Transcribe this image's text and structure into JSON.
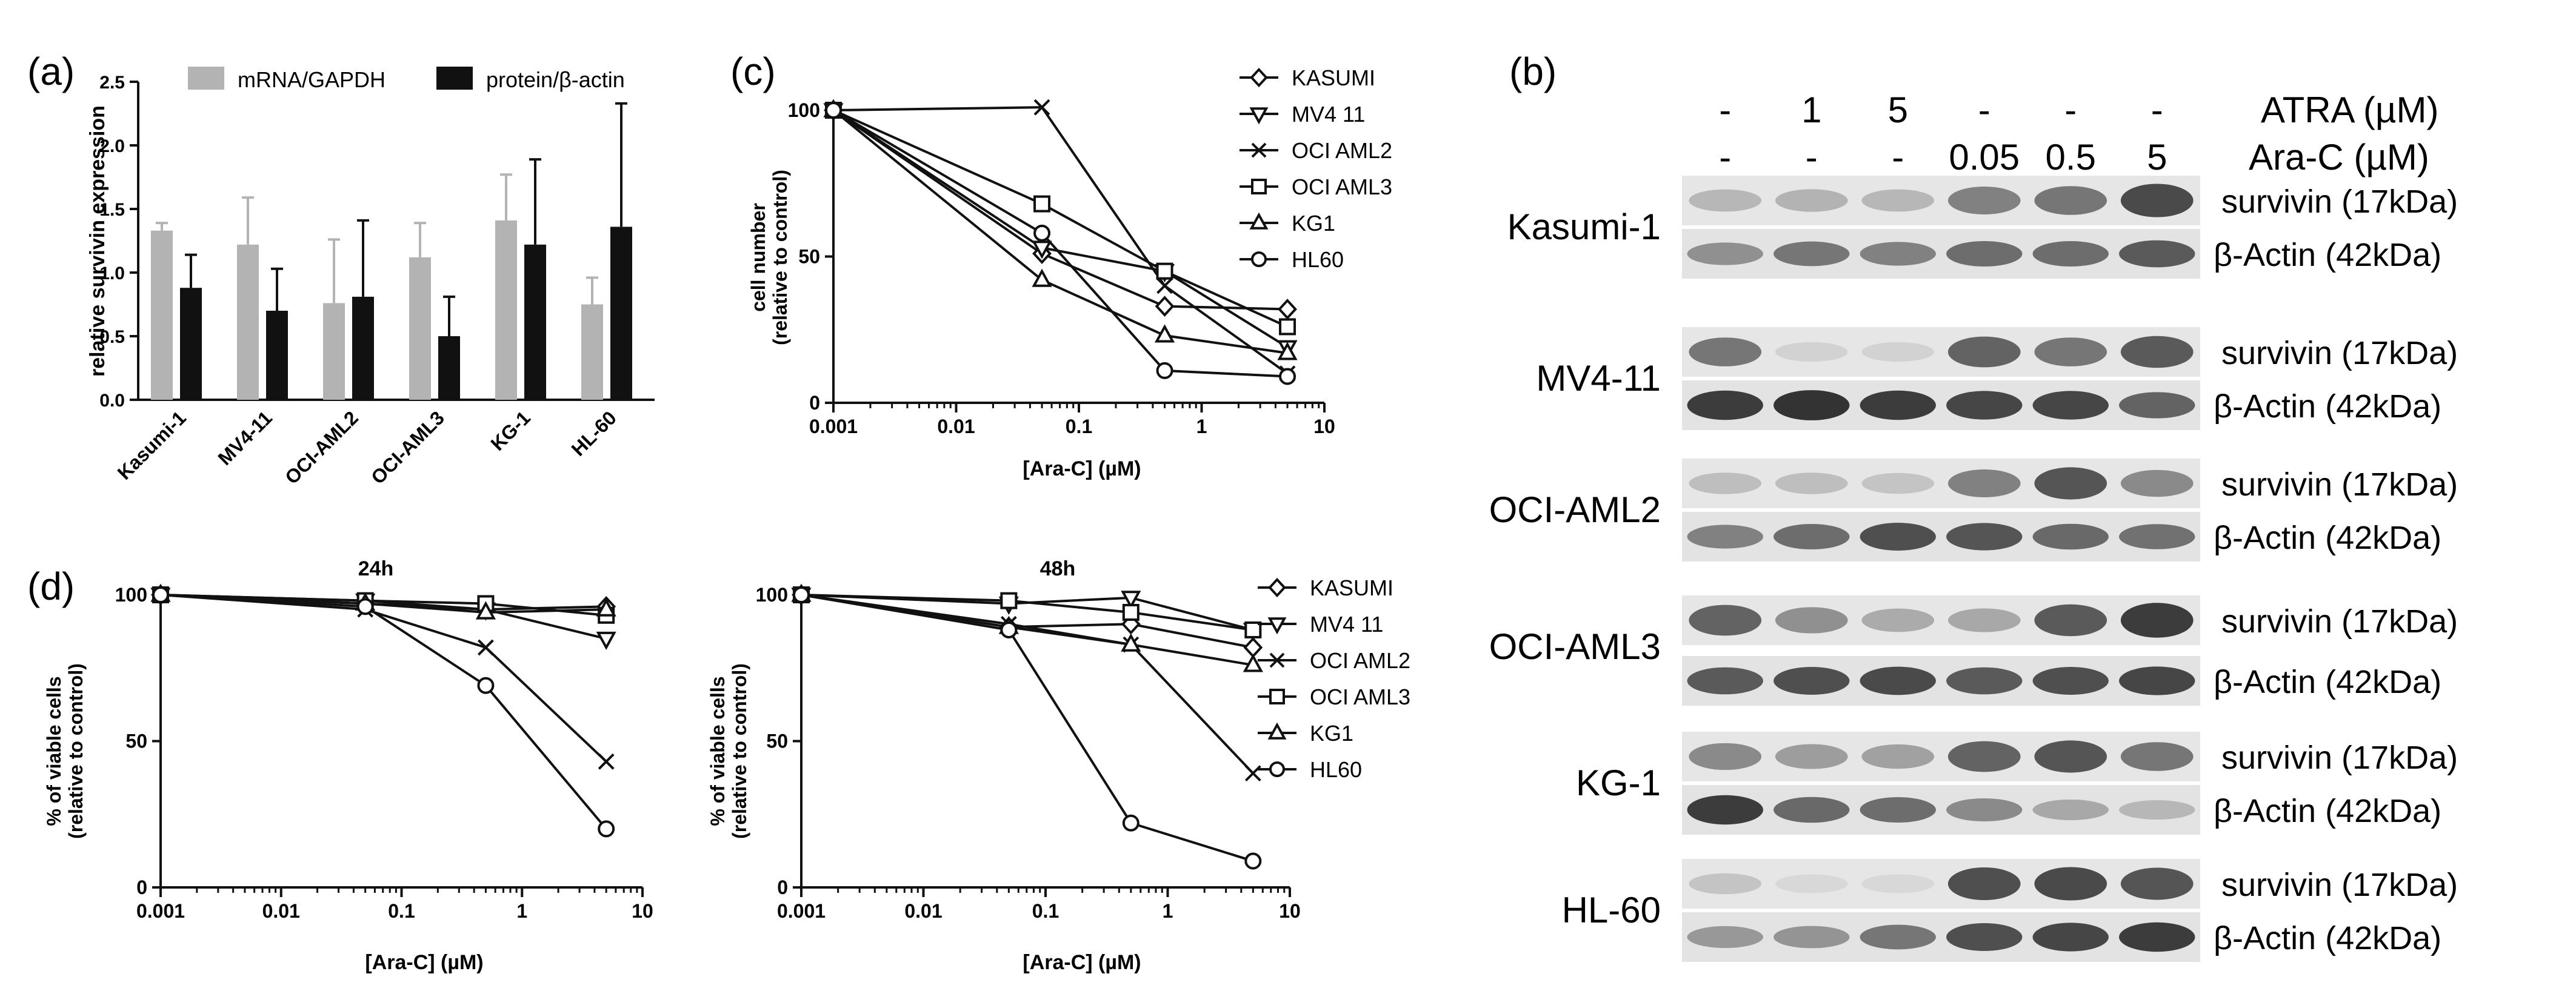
{
  "panel_a": {
    "label": "(a)",
    "ylabel": "relative survivin expression",
    "chart_data": {
      "type": "bar",
      "categories": [
        "Kasumi-1",
        "MV4-11",
        "OCI-AML2",
        "OCI-AML3",
        "KG-1",
        "HL-60"
      ],
      "ylim": [
        0,
        2.5
      ],
      "yticks": [
        "0.0",
        "0.5",
        "1.0",
        "1.5",
        "2.0",
        "2.5"
      ],
      "series": [
        {
          "name": "mRNA/GAPDH",
          "color": "#b3b3b3",
          "values": [
            1.33,
            1.22,
            0.76,
            1.12,
            1.41,
            0.75
          ],
          "err": [
            0.06,
            0.37,
            0.5,
            0.27,
            0.36,
            0.21
          ]
        },
        {
          "name": "protein/β-actin",
          "color": "#111111",
          "values": [
            0.88,
            0.7,
            0.81,
            0.5,
            1.22,
            1.36
          ],
          "err": [
            0.26,
            0.33,
            0.6,
            0.31,
            0.67,
            0.97
          ]
        }
      ]
    }
  },
  "panel_b": {
    "label": "(b)",
    "treatments": {
      "atra_label": "ATRA (µM)",
      "arac_label": "Ara-C (µM)",
      "atra": [
        "-",
        "1",
        "5",
        "-",
        "-",
        "-"
      ],
      "arac": [
        "-",
        "-",
        "-",
        "0.05",
        "0.5",
        "5"
      ]
    },
    "rows": [
      {
        "cell": "Kasumi-1",
        "survivin_label": "survivin (17kDa)",
        "actin_label": "β-Actin (42kDa)",
        "survivin": [
          0.22,
          0.24,
          0.22,
          0.5,
          0.55,
          0.78
        ],
        "actin": [
          0.42,
          0.55,
          0.5,
          0.6,
          0.6,
          0.7
        ]
      },
      {
        "cell": "MV4-11",
        "survivin_label": "survivin (17kDa)",
        "actin_label": "β-Actin (42kDa)",
        "survivin": [
          0.55,
          0.08,
          0.08,
          0.65,
          0.55,
          0.7
        ],
        "actin": [
          0.85,
          0.9,
          0.85,
          0.8,
          0.8,
          0.65
        ]
      },
      {
        "cell": "OCI-AML2",
        "survivin_label": "survivin (17kDa)",
        "actin_label": "β-Actin (42kDa)",
        "survivin": [
          0.18,
          0.18,
          0.15,
          0.5,
          0.72,
          0.45
        ],
        "actin": [
          0.5,
          0.6,
          0.75,
          0.72,
          0.62,
          0.58
        ]
      },
      {
        "cell": "OCI-AML3",
        "survivin_label": "survivin (17kDa)",
        "actin_label": "β-Actin (42kDa)",
        "survivin": [
          0.65,
          0.42,
          0.28,
          0.3,
          0.7,
          0.85
        ],
        "actin": [
          0.7,
          0.75,
          0.78,
          0.7,
          0.75,
          0.8
        ]
      },
      {
        "cell": "KG-1",
        "survivin_label": "survivin (17kDa)",
        "actin_label": "β-Actin (42kDa)",
        "survivin": [
          0.45,
          0.35,
          0.33,
          0.65,
          0.72,
          0.55
        ],
        "actin": [
          0.85,
          0.62,
          0.6,
          0.45,
          0.3,
          0.22
        ]
      },
      {
        "cell": "HL-60",
        "survivin_label": "survivin (17kDa)",
        "actin_label": "β-Actin (42kDa)",
        "survivin": [
          0.15,
          0.05,
          0.05,
          0.75,
          0.78,
          0.72
        ],
        "actin": [
          0.38,
          0.4,
          0.55,
          0.75,
          0.8,
          0.85
        ]
      }
    ]
  },
  "panel_c": {
    "label": "(c)",
    "ylabel": "cell number (relative to control)",
    "xlabel": "[Ara-C] (µM)",
    "chart_data": {
      "type": "line",
      "xscale": "log",
      "xlim": [
        0.001,
        10
      ],
      "ylim": [
        0,
        100
      ],
      "xticks": [
        {
          "v": 0.001,
          "label": "0.001"
        },
        {
          "v": 0.01,
          "label": "0.01"
        },
        {
          "v": 0.1,
          "label": "0.1"
        },
        {
          "v": 1,
          "label": "1"
        },
        {
          "v": 10,
          "label": "10"
        }
      ],
      "yticks": [
        {
          "v": 0,
          "label": "0"
        },
        {
          "v": 50,
          "label": "50"
        },
        {
          "v": 100,
          "label": "100"
        }
      ],
      "x": [
        0.001,
        0.05,
        0.5,
        5
      ],
      "legend_position": "right",
      "series": [
        {
          "name": "KASUMI",
          "marker": "diamond",
          "values": [
            100,
            51,
            33,
            32
          ]
        },
        {
          "name": "MV4 11",
          "marker": "triangle-down",
          "values": [
            100,
            53,
            45,
            19
          ]
        },
        {
          "name": "OCI AML2",
          "marker": "x",
          "values": [
            100,
            101,
            40,
            10
          ]
        },
        {
          "name": "OCI AML3",
          "marker": "square",
          "values": [
            100,
            68,
            45,
            26
          ]
        },
        {
          "name": "KG1",
          "marker": "triangle-up",
          "values": [
            100,
            42,
            23,
            17
          ]
        },
        {
          "name": "HL60",
          "marker": "circle",
          "values": [
            100,
            58,
            11,
            9
          ]
        }
      ]
    }
  },
  "panel_d": {
    "label": "(d)",
    "ylabel": "% of viable cells (relative to control)",
    "xlabel": "[Ara-C] (µM)",
    "charts": [
      {
        "title": "24h",
        "chart_data": {
          "type": "line",
          "xscale": "log",
          "xlim": [
            0.001,
            10
          ],
          "ylim": [
            0,
            100
          ],
          "x": [
            0.001,
            0.05,
            0.5,
            5
          ],
          "series": [
            {
              "name": "KASUMI",
              "marker": "diamond",
              "values": [
                100,
                97,
                95,
                96
              ]
            },
            {
              "name": "MV4 11",
              "marker": "triangle-down",
              "values": [
                100,
                98,
                95,
                85
              ]
            },
            {
              "name": "OCI AML2",
              "marker": "x",
              "values": [
                100,
                95,
                82,
                43
              ]
            },
            {
              "name": "OCI AML3",
              "marker": "square",
              "values": [
                100,
                98,
                97,
                93
              ]
            },
            {
              "name": "KG1",
              "marker": "triangle-up",
              "values": [
                100,
                97,
                94,
                95
              ]
            },
            {
              "name": "HL60",
              "marker": "circle",
              "values": [
                100,
                96,
                69,
                20
              ]
            }
          ]
        }
      },
      {
        "title": "48h",
        "chart_data": {
          "type": "line",
          "xscale": "log",
          "xlim": [
            0.001,
            10
          ],
          "ylim": [
            0,
            100
          ],
          "x": [
            0.001,
            0.05,
            0.5,
            5
          ],
          "legend_position": "right",
          "series": [
            {
              "name": "KASUMI",
              "marker": "diamond",
              "values": [
                100,
                89,
                90,
                82
              ]
            },
            {
              "name": "MV4 11",
              "marker": "triangle-down",
              "values": [
                100,
                97,
                99,
                88
              ]
            },
            {
              "name": "OCI AML2",
              "marker": "x",
              "values": [
                100,
                90,
                83,
                39
              ]
            },
            {
              "name": "OCI AML3",
              "marker": "square",
              "values": [
                100,
                98,
                94,
                88
              ]
            },
            {
              "name": "KG1",
              "marker": "triangle-up",
              "values": [
                100,
                89,
                83,
                76
              ]
            },
            {
              "name": "HL60",
              "marker": "circle",
              "values": [
                100,
                88,
                22,
                9
              ]
            }
          ]
        }
      }
    ],
    "xticks": [
      {
        "v": 0.001,
        "label": "0.001"
      },
      {
        "v": 0.01,
        "label": "0.01"
      },
      {
        "v": 0.1,
        "label": "0.1"
      },
      {
        "v": 1,
        "label": "1"
      },
      {
        "v": 10,
        "label": "10"
      }
    ],
    "yticks": [
      {
        "v": 0,
        "label": "0"
      },
      {
        "v": 50,
        "label": "50"
      },
      {
        "v": 100,
        "label": "100"
      }
    ]
  }
}
